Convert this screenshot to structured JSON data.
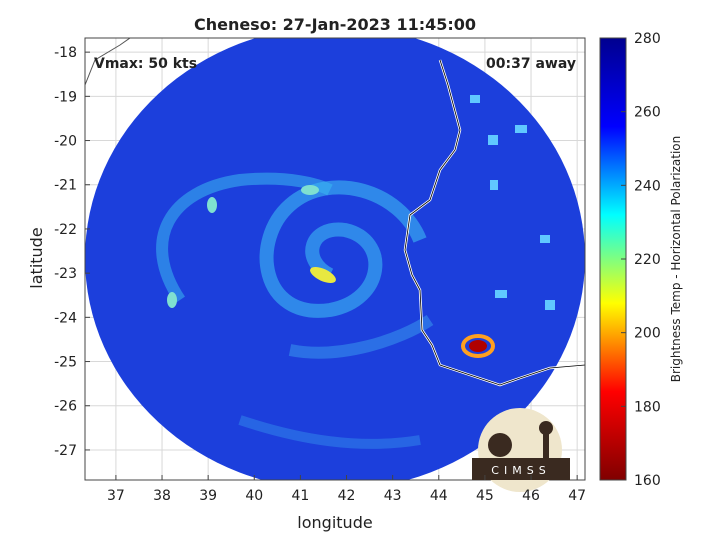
{
  "chart_data": {
    "type": "map",
    "title": "Cheneso: 27-Jan-2023 11:45:00",
    "annotations": [
      "Vmax: 50 kts",
      "00:37 away"
    ],
    "xlabel": "longitude",
    "ylabel": "latitude",
    "xlim": [
      36.33,
      47.17
    ],
    "xticks": [
      37,
      38,
      39,
      40,
      41,
      42,
      43,
      44,
      45,
      46,
      47
    ],
    "ylim": [
      -27.68,
      -17.68
    ],
    "yticks": [
      -18,
      -19,
      -20,
      -21,
      -22,
      -23,
      -24,
      -25,
      -26,
      -27
    ],
    "grid": true,
    "colorbar": {
      "label": "Brightness Temp - Horizontal Polarization",
      "lim": [
        160,
        280
      ],
      "ticks": [
        160,
        180,
        200,
        220,
        240,
        260,
        280
      ],
      "colors": [
        "#800000",
        "#ff0000",
        "#ffff00",
        "#00ffff",
        "#0000ff",
        "#00008f"
      ]
    },
    "logo": "CIMSS"
  }
}
